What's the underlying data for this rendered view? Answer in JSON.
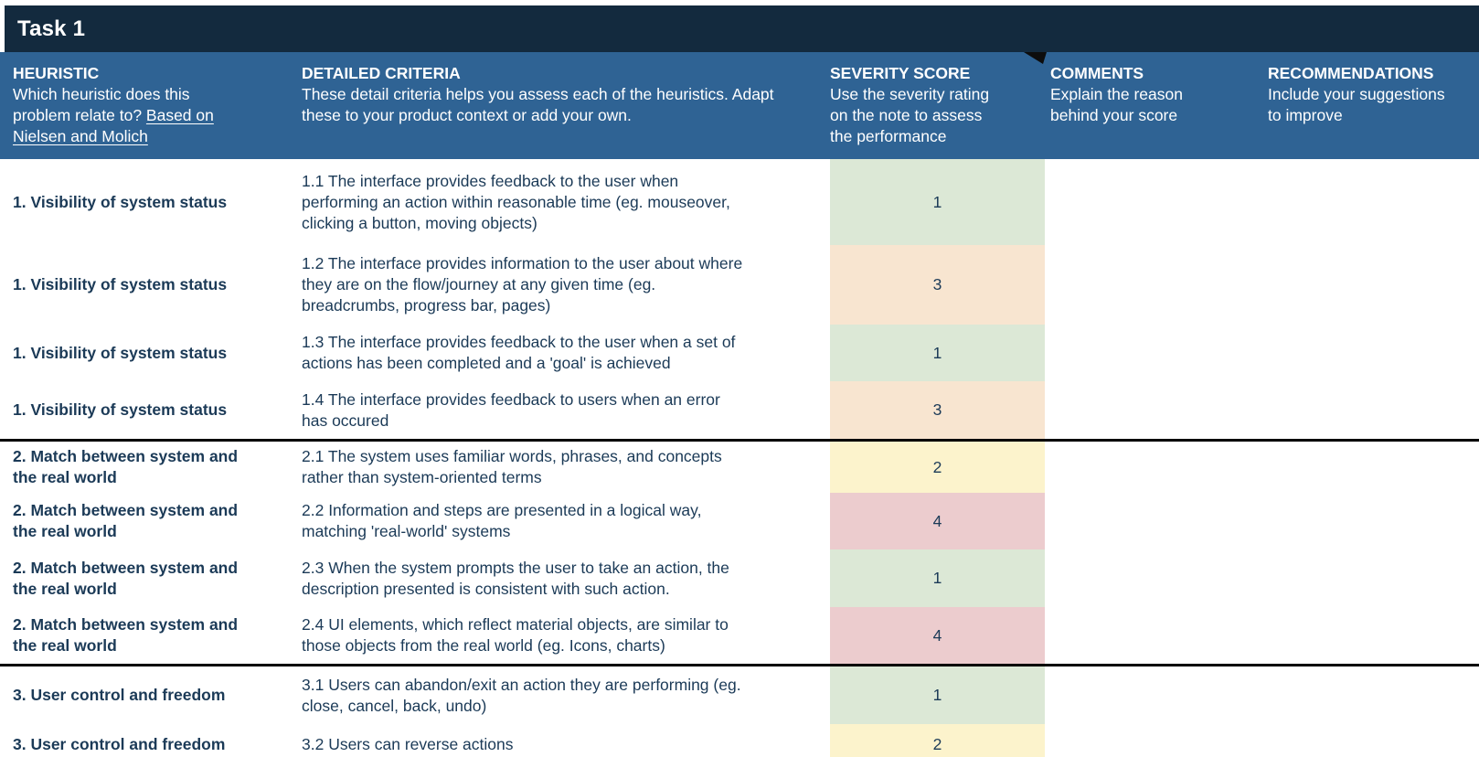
{
  "task_bar": {
    "title": "Task 1"
  },
  "header": {
    "heuristic": {
      "title": "HEURISTIC",
      "description": "Which heuristic does this problem relate to? ",
      "link_text": "Based on Nielsen and Molich"
    },
    "criteria": {
      "title": "DETAILED CRITERIA",
      "description": "These detail criteria helps you assess each of the heuristics. Adapt these to your product context or add your own."
    },
    "severity": {
      "title": "SEVERITY SCORE",
      "description": "Use the severity rating on the note to assess the performance"
    },
    "comments": {
      "title": "COMMENTS",
      "description": "Explain the reason behind your score"
    },
    "recommendations": {
      "title": "RECOMMENDATIONS",
      "description": "Include your suggestions to improve"
    }
  },
  "colors": {
    "task_bar_bg": "#132a3e",
    "header_bg": "#2f6394",
    "text": "#1b3a57",
    "section_divider": "#000000",
    "severity_1": "#dce8d6",
    "severity_2": "#fcf3cc",
    "severity_3": "#f8e5d0",
    "severity_4": "#ecccce"
  },
  "severity_colors": {
    "1": "#dce8d6",
    "2": "#fcf3cc",
    "3": "#f8e5d0",
    "4": "#ecccce"
  },
  "rows": [
    {
      "heuristic": "1. Visibility of system status",
      "criteria": "1.1 The interface provides feedback to the user when performing an action within reasonable time (eg. mouseover, clicking a button, moving objects)",
      "score": "1",
      "comment": "",
      "recommendation": "",
      "section_start": false
    },
    {
      "heuristic": "1. Visibility of system status",
      "criteria": "1.2 The interface provides information to the user about where they are on the flow/journey at any given time (eg. breadcrumbs, progress bar, pages)",
      "score": "3",
      "comment": "",
      "recommendation": "",
      "section_start": false
    },
    {
      "heuristic": "1. Visibility of system status",
      "criteria": "1.3 The interface provides feedback to the user when a set of actions has been completed and a 'goal' is achieved",
      "score": "1",
      "comment": "",
      "recommendation": "",
      "section_start": false
    },
    {
      "heuristic": "1. Visibility of system status",
      "criteria": "1.4 The interface provides feedback to users when an error has occured",
      "score": "3",
      "comment": "",
      "recommendation": "",
      "section_start": false
    },
    {
      "heuristic": "2. Match between system and the real world",
      "criteria": "2.1 The system uses familiar words, phrases, and concepts rather than system-oriented terms",
      "score": "2",
      "comment": "",
      "recommendation": "",
      "section_start": true
    },
    {
      "heuristic": "2. Match between system and the real world",
      "criteria": "2.2 Information and steps are presented in a logical way, matching 'real-world' systems",
      "score": "4",
      "comment": "",
      "recommendation": "",
      "section_start": false
    },
    {
      "heuristic": "2. Match between system and the real world",
      "criteria": "2.3 When the system prompts the user to take an action, the description presented is consistent with such action.",
      "score": "1",
      "comment": "",
      "recommendation": "",
      "section_start": false
    },
    {
      "heuristic": "2. Match between system and the real world",
      "criteria": "2.4 UI elements, which reflect material objects, are similar to those objects from the real world (eg. Icons, charts)",
      "score": "4",
      "comment": "",
      "recommendation": "",
      "section_start": false
    },
    {
      "heuristic": "3. User control and freedom",
      "criteria": "3.1 Users can abandon/exit an action they are performing (eg. close, cancel, back, undo)",
      "score": "1",
      "comment": "",
      "recommendation": "",
      "section_start": true
    },
    {
      "heuristic": "3. User control and freedom",
      "criteria": "3.2 Users can reverse actions",
      "score": "2",
      "comment": "",
      "recommendation": "",
      "section_start": false
    }
  ]
}
